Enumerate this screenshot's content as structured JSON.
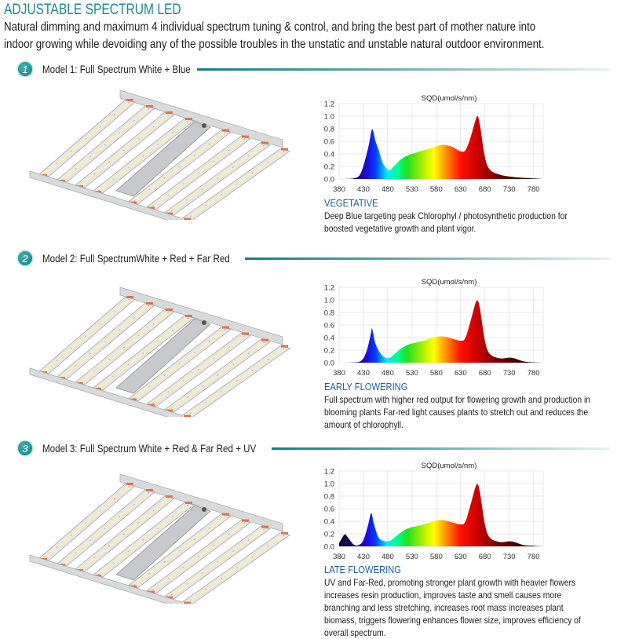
{
  "header": {
    "title": "ADJUSTABLE SPECTRUM LED",
    "intro": "Natural dimming and maximum 4 individual spectrum tuning & control, and bring the best part of mother nature into indoor growing while devoiding any of the possible troubles in the unstatic and unstable natural outdoor environment."
  },
  "colors": {
    "accent": "#1b8a8e",
    "stage_label": "#1a5e9e"
  },
  "models": [
    {
      "number": "1",
      "label": "Model 1: Full Spectrum White + Blue",
      "stage": "VEGETATIVE",
      "description": "Deep Blue targeting peak Chlorophyl / photosynthetic production for boosted vegetative growth and plant vigor."
    },
    {
      "number": "2",
      "label": "Model 2: Full SpectrumWhite + Red + Far Red",
      "stage": "EARLY  FLOWERING",
      "description": "Full spectrum with higher red output for flowering growth and production in blooming plants Far-red light causes plants to stretch out and reduces the amount of chlorophyll."
    },
    {
      "number": "3",
      "label": "Model 3: Full Spectrum White + Red & Far Red + UV",
      "stage": "LATE  FLOWERING",
      "description": "UV and Far-Red, promoting stronger plant growth with heavier flowers increases resin production, improves taste and smell causes more branching and less stretching, increases root mass increases plant biomass, triggers flowering enhances flower size, improves efficiency of overall spectrum."
    }
  ],
  "chart_data": [
    {
      "type": "area",
      "title": "SQD(umol/s/nm)",
      "xlim": [
        380,
        800
      ],
      "ylim": [
        0,
        1.2
      ],
      "grid": true,
      "xticks": [
        380,
        430,
        480,
        530,
        580,
        630,
        680,
        730,
        780
      ],
      "yticks": [
        "0.0",
        "0.2",
        "0.4",
        "0.6",
        "0.8",
        "1.0",
        "1.2"
      ],
      "x": [
        380,
        410,
        425,
        440,
        448,
        455,
        462,
        470,
        480,
        485,
        495,
        510,
        530,
        560,
        590,
        610,
        630,
        640,
        650,
        660,
        665,
        670,
        680,
        690,
        710,
        740,
        780,
        800
      ],
      "y": [
        0,
        0.01,
        0.1,
        0.5,
        0.79,
        0.6,
        0.45,
        0.25,
        0.15,
        0.14,
        0.22,
        0.33,
        0.4,
        0.47,
        0.54,
        0.52,
        0.44,
        0.46,
        0.65,
        0.92,
        1.0,
        0.85,
        0.35,
        0.15,
        0.07,
        0.03,
        0.01,
        0
      ]
    },
    {
      "type": "area",
      "title": "SQD(umol/s/nm)",
      "xlim": [
        380,
        800
      ],
      "ylim": [
        0,
        1.2
      ],
      "grid": true,
      "xticks": [
        380,
        430,
        480,
        530,
        580,
        630,
        680,
        730,
        780
      ],
      "yticks": [
        "0.0",
        "0.2",
        "0.4",
        "0.6",
        "0.8",
        "1.0",
        "1.2"
      ],
      "x": [
        380,
        420,
        435,
        445,
        448,
        455,
        465,
        475,
        485,
        500,
        520,
        550,
        580,
        600,
        630,
        640,
        650,
        660,
        665,
        670,
        680,
        690,
        710,
        730,
        740,
        760,
        780,
        800
      ],
      "y": [
        0,
        0.01,
        0.15,
        0.45,
        0.54,
        0.3,
        0.15,
        0.08,
        0.08,
        0.18,
        0.28,
        0.34,
        0.41,
        0.41,
        0.35,
        0.4,
        0.65,
        0.93,
        0.99,
        0.85,
        0.35,
        0.14,
        0.07,
        0.08,
        0.07,
        0.02,
        0.005,
        0
      ]
    },
    {
      "type": "area",
      "title": "SQD(umol/s/nm)",
      "xlim": [
        380,
        800
      ],
      "ylim": [
        0,
        1.2
      ],
      "grid": true,
      "xticks": [
        380,
        430,
        480,
        530,
        580,
        630,
        680,
        730,
        780
      ],
      "yticks": [
        "0.0",
        "0.2",
        "0.4",
        "0.6",
        "0.8",
        "1.0",
        "1.2"
      ],
      "x": [
        380,
        385,
        392,
        400,
        410,
        420,
        430,
        440,
        446,
        452,
        460,
        470,
        485,
        500,
        520,
        550,
        580,
        600,
        630,
        640,
        650,
        660,
        665,
        670,
        680,
        690,
        710,
        730,
        740,
        760,
        780,
        800
      ],
      "y": [
        0.05,
        0.12,
        0.19,
        0.12,
        0.03,
        0.02,
        0.1,
        0.35,
        0.53,
        0.35,
        0.16,
        0.09,
        0.09,
        0.18,
        0.28,
        0.34,
        0.41,
        0.41,
        0.35,
        0.4,
        0.65,
        0.93,
        0.99,
        0.85,
        0.35,
        0.14,
        0.07,
        0.08,
        0.07,
        0.02,
        0.01,
        0
      ]
    }
  ]
}
